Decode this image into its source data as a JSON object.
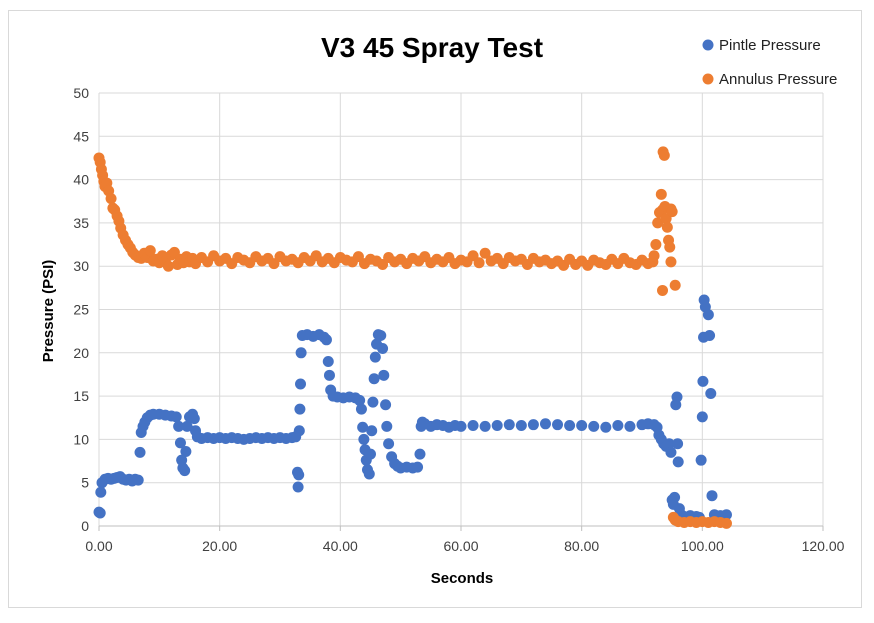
{
  "chart_data": {
    "type": "scatter",
    "title": "V3 45 Spray Test",
    "xlabel": "Seconds",
    "ylabel": "Pressure (PSI)",
    "xlim": [
      0,
      120
    ],
    "ylim": [
      0,
      50
    ],
    "x_ticks": [
      "0.00",
      "20.00",
      "40.00",
      "60.00",
      "80.00",
      "100.00",
      "120.00"
    ],
    "y_ticks": [
      "0",
      "5",
      "10",
      "15",
      "20",
      "25",
      "30",
      "35",
      "40",
      "45",
      "50"
    ],
    "grid": true,
    "legend_position": "top-right",
    "series": [
      {
        "name": "Pintle Pressure",
        "color": "#4472C4",
        "points": [
          [
            0.0,
            1.6
          ],
          [
            0.2,
            1.5
          ],
          [
            0.3,
            3.9
          ],
          [
            0.5,
            5.0
          ],
          [
            1.0,
            5.4
          ],
          [
            1.5,
            5.5
          ],
          [
            2.0,
            5.4
          ],
          [
            2.5,
            5.5
          ],
          [
            3.0,
            5.6
          ],
          [
            3.5,
            5.7
          ],
          [
            4.0,
            5.4
          ],
          [
            4.5,
            5.3
          ],
          [
            5.0,
            5.4
          ],
          [
            5.5,
            5.2
          ],
          [
            6.0,
            5.4
          ],
          [
            6.5,
            5.3
          ],
          [
            6.8,
            8.5
          ],
          [
            7.0,
            10.8
          ],
          [
            7.3,
            11.5
          ],
          [
            7.6,
            12.0
          ],
          [
            8.0,
            12.5
          ],
          [
            8.5,
            12.8
          ],
          [
            9.0,
            12.9
          ],
          [
            10.0,
            12.9
          ],
          [
            11.0,
            12.8
          ],
          [
            12.0,
            12.7
          ],
          [
            12.8,
            12.6
          ],
          [
            13.2,
            11.5
          ],
          [
            13.5,
            9.6
          ],
          [
            13.7,
            7.6
          ],
          [
            13.9,
            6.7
          ],
          [
            14.2,
            6.4
          ],
          [
            14.4,
            8.6
          ],
          [
            14.6,
            11.5
          ],
          [
            15.0,
            12.6
          ],
          [
            15.5,
            12.9
          ],
          [
            15.8,
            12.4
          ],
          [
            16.0,
            11.0
          ],
          [
            16.3,
            10.3
          ],
          [
            17.0,
            10.1
          ],
          [
            18.0,
            10.2
          ],
          [
            19.0,
            10.1
          ],
          [
            20.0,
            10.2
          ],
          [
            21.0,
            10.1
          ],
          [
            22.0,
            10.2
          ],
          [
            23.0,
            10.1
          ],
          [
            24.0,
            10.0
          ],
          [
            25.0,
            10.1
          ],
          [
            26.0,
            10.2
          ],
          [
            27.0,
            10.1
          ],
          [
            28.0,
            10.2
          ],
          [
            29.0,
            10.1
          ],
          [
            30.0,
            10.2
          ],
          [
            31.0,
            10.1
          ],
          [
            32.0,
            10.2
          ],
          [
            32.6,
            10.3
          ],
          [
            32.9,
            6.2
          ],
          [
            33.0,
            4.5
          ],
          [
            33.1,
            5.9
          ],
          [
            33.2,
            11.0
          ],
          [
            33.3,
            13.5
          ],
          [
            33.4,
            16.4
          ],
          [
            33.5,
            20.0
          ],
          [
            33.7,
            22.0
          ],
          [
            34.5,
            22.1
          ],
          [
            35.5,
            21.9
          ],
          [
            36.5,
            22.1
          ],
          [
            37.3,
            21.8
          ],
          [
            37.7,
            21.5
          ],
          [
            38.0,
            19.0
          ],
          [
            38.2,
            17.4
          ],
          [
            38.4,
            15.7
          ],
          [
            38.8,
            15.0
          ],
          [
            39.5,
            14.9
          ],
          [
            40.5,
            14.8
          ],
          [
            41.5,
            14.9
          ],
          [
            42.5,
            14.8
          ],
          [
            43.2,
            14.5
          ],
          [
            43.5,
            13.5
          ],
          [
            43.7,
            11.4
          ],
          [
            43.9,
            10.0
          ],
          [
            44.1,
            8.8
          ],
          [
            44.3,
            7.6
          ],
          [
            44.5,
            6.5
          ],
          [
            44.8,
            6.0
          ],
          [
            45.0,
            8.3
          ],
          [
            45.2,
            11.0
          ],
          [
            45.4,
            14.3
          ],
          [
            45.6,
            17.0
          ],
          [
            45.8,
            19.5
          ],
          [
            46.0,
            21.0
          ],
          [
            46.3,
            22.1
          ],
          [
            46.7,
            22.0
          ],
          [
            47.0,
            20.5
          ],
          [
            47.2,
            17.4
          ],
          [
            47.5,
            14.0
          ],
          [
            47.7,
            11.5
          ],
          [
            48.0,
            9.5
          ],
          [
            48.5,
            8.0
          ],
          [
            49.0,
            7.2
          ],
          [
            49.5,
            6.9
          ],
          [
            50.0,
            6.7
          ],
          [
            51.0,
            6.8
          ],
          [
            52.0,
            6.7
          ],
          [
            52.8,
            6.8
          ],
          [
            53.2,
            8.3
          ],
          [
            53.4,
            11.5
          ],
          [
            53.6,
            12.0
          ],
          [
            54.0,
            11.8
          ],
          [
            55.0,
            11.5
          ],
          [
            56.0,
            11.7
          ],
          [
            57.0,
            11.6
          ],
          [
            58.0,
            11.4
          ],
          [
            59.0,
            11.6
          ],
          [
            60.0,
            11.5
          ],
          [
            62.0,
            11.6
          ],
          [
            64.0,
            11.5
          ],
          [
            66.0,
            11.6
          ],
          [
            68.0,
            11.7
          ],
          [
            70.0,
            11.6
          ],
          [
            72.0,
            11.7
          ],
          [
            74.0,
            11.8
          ],
          [
            76.0,
            11.7
          ],
          [
            78.0,
            11.6
          ],
          [
            80.0,
            11.6
          ],
          [
            82.0,
            11.5
          ],
          [
            84.0,
            11.4
          ],
          [
            86.0,
            11.6
          ],
          [
            88.0,
            11.5
          ],
          [
            90.0,
            11.7
          ],
          [
            91.0,
            11.8
          ],
          [
            92.0,
            11.7
          ],
          [
            92.5,
            11.4
          ],
          [
            92.8,
            10.5
          ],
          [
            93.2,
            10.0
          ],
          [
            93.6,
            9.5
          ],
          [
            94.0,
            9.2
          ],
          [
            94.5,
            9.5
          ],
          [
            94.8,
            8.5
          ],
          [
            95.0,
            3.0
          ],
          [
            95.2,
            2.5
          ],
          [
            95.4,
            3.3
          ],
          [
            95.6,
            14.0
          ],
          [
            95.8,
            14.9
          ],
          [
            95.9,
            9.5
          ],
          [
            96.0,
            7.4
          ],
          [
            96.2,
            2.0
          ],
          [
            96.5,
            1.3
          ],
          [
            97.0,
            1.1
          ],
          [
            98.0,
            1.2
          ],
          [
            99.0,
            1.1
          ],
          [
            99.5,
            1.0
          ],
          [
            99.8,
            7.6
          ],
          [
            100.0,
            12.6
          ],
          [
            100.1,
            16.7
          ],
          [
            100.2,
            21.8
          ],
          [
            100.3,
            26.1
          ],
          [
            100.5,
            25.3
          ],
          [
            101.0,
            24.4
          ],
          [
            101.2,
            22.0
          ],
          [
            101.4,
            15.3
          ],
          [
            101.6,
            3.5
          ],
          [
            102.0,
            1.3
          ],
          [
            103.0,
            1.2
          ],
          [
            104.0,
            1.3
          ]
        ]
      },
      {
        "name": "Annulus Pressure",
        "color": "#ED7D31",
        "points": [
          [
            0.0,
            42.5
          ],
          [
            0.2,
            42.0
          ],
          [
            0.4,
            41.2
          ],
          [
            0.6,
            40.5
          ],
          [
            0.8,
            39.8
          ],
          [
            1.0,
            39.2
          ],
          [
            1.3,
            39.6
          ],
          [
            1.6,
            38.7
          ],
          [
            2.0,
            37.8
          ],
          [
            2.3,
            36.7
          ],
          [
            2.6,
            36.5
          ],
          [
            3.0,
            35.8
          ],
          [
            3.3,
            35.2
          ],
          [
            3.6,
            34.4
          ],
          [
            4.0,
            33.6
          ],
          [
            4.4,
            33.0
          ],
          [
            4.8,
            32.5
          ],
          [
            5.2,
            32.1
          ],
          [
            5.6,
            31.6
          ],
          [
            6.0,
            31.3
          ],
          [
            6.5,
            31.0
          ],
          [
            7.0,
            30.9
          ],
          [
            7.5,
            31.5
          ],
          [
            8.0,
            31.0
          ],
          [
            8.5,
            31.8
          ],
          [
            9.0,
            30.6
          ],
          [
            9.5,
            30.8
          ],
          [
            10.0,
            30.4
          ],
          [
            10.5,
            31.2
          ],
          [
            11.0,
            30.6
          ],
          [
            11.5,
            30.0
          ],
          [
            12.0,
            31.3
          ],
          [
            12.5,
            31.6
          ],
          [
            13.0,
            30.2
          ],
          [
            13.5,
            30.8
          ],
          [
            14.0,
            30.4
          ],
          [
            14.5,
            31.1
          ],
          [
            15.0,
            30.5
          ],
          [
            15.5,
            30.9
          ],
          [
            16.0,
            30.3
          ],
          [
            17.0,
            31.0
          ],
          [
            18.0,
            30.5
          ],
          [
            19.0,
            31.2
          ],
          [
            20.0,
            30.6
          ],
          [
            21.0,
            30.9
          ],
          [
            22.0,
            30.3
          ],
          [
            23.0,
            31.0
          ],
          [
            24.0,
            30.7
          ],
          [
            25.0,
            30.4
          ],
          [
            26.0,
            31.1
          ],
          [
            27.0,
            30.6
          ],
          [
            28.0,
            30.9
          ],
          [
            29.0,
            30.3
          ],
          [
            30.0,
            31.1
          ],
          [
            31.0,
            30.6
          ],
          [
            32.0,
            30.8
          ],
          [
            33.0,
            30.4
          ],
          [
            34.0,
            31.0
          ],
          [
            35.0,
            30.6
          ],
          [
            36.0,
            31.2
          ],
          [
            37.0,
            30.5
          ],
          [
            38.0,
            30.9
          ],
          [
            39.0,
            30.4
          ],
          [
            40.0,
            31.0
          ],
          [
            41.0,
            30.7
          ],
          [
            42.0,
            30.5
          ],
          [
            43.0,
            31.1
          ],
          [
            44.0,
            30.3
          ],
          [
            45.0,
            30.8
          ],
          [
            46.0,
            30.6
          ],
          [
            47.0,
            30.2
          ],
          [
            48.0,
            31.0
          ],
          [
            49.0,
            30.5
          ],
          [
            50.0,
            30.8
          ],
          [
            51.0,
            30.3
          ],
          [
            52.0,
            30.9
          ],
          [
            53.0,
            30.6
          ],
          [
            54.0,
            31.1
          ],
          [
            55.0,
            30.4
          ],
          [
            56.0,
            30.8
          ],
          [
            57.0,
            30.5
          ],
          [
            58.0,
            31.0
          ],
          [
            59.0,
            30.3
          ],
          [
            60.0,
            30.7
          ],
          [
            61.0,
            30.5
          ],
          [
            62.0,
            31.2
          ],
          [
            63.0,
            30.4
          ],
          [
            64.0,
            31.5
          ],
          [
            65.0,
            30.6
          ],
          [
            66.0,
            30.9
          ],
          [
            67.0,
            30.3
          ],
          [
            68.0,
            31.0
          ],
          [
            69.0,
            30.6
          ],
          [
            70.0,
            30.8
          ],
          [
            71.0,
            30.2
          ],
          [
            72.0,
            30.9
          ],
          [
            73.0,
            30.5
          ],
          [
            74.0,
            30.7
          ],
          [
            75.0,
            30.3
          ],
          [
            76.0,
            30.6
          ],
          [
            77.0,
            30.1
          ],
          [
            78.0,
            30.8
          ],
          [
            79.0,
            30.2
          ],
          [
            80.0,
            30.6
          ],
          [
            81.0,
            30.1
          ],
          [
            82.0,
            30.7
          ],
          [
            83.0,
            30.4
          ],
          [
            84.0,
            30.2
          ],
          [
            85.0,
            30.8
          ],
          [
            86.0,
            30.3
          ],
          [
            87.0,
            30.9
          ],
          [
            88.0,
            30.4
          ],
          [
            89.0,
            30.2
          ],
          [
            90.0,
            30.7
          ],
          [
            91.0,
            30.3
          ],
          [
            91.8,
            30.5
          ],
          [
            92.0,
            31.2
          ],
          [
            92.3,
            32.5
          ],
          [
            92.6,
            35.0
          ],
          [
            92.9,
            36.2
          ],
          [
            93.2,
            38.3
          ],
          [
            93.4,
            36.5
          ],
          [
            93.5,
            43.2
          ],
          [
            93.7,
            42.8
          ],
          [
            93.8,
            36.9
          ],
          [
            94.0,
            35.5
          ],
          [
            94.2,
            34.5
          ],
          [
            94.4,
            33.0
          ],
          [
            94.6,
            32.2
          ],
          [
            94.8,
            30.5
          ],
          [
            93.4,
            27.2
          ],
          [
            95.5,
            27.8
          ],
          [
            94.8,
            36.6
          ],
          [
            95.0,
            36.3
          ],
          [
            95.2,
            1.0
          ],
          [
            95.5,
            0.7
          ],
          [
            96.0,
            0.5
          ],
          [
            97.0,
            0.4
          ],
          [
            98.0,
            0.5
          ],
          [
            99.0,
            0.4
          ],
          [
            100.0,
            0.5
          ],
          [
            101.0,
            0.4
          ],
          [
            102.0,
            0.5
          ],
          [
            103.0,
            0.4
          ],
          [
            104.0,
            0.3
          ]
        ]
      }
    ]
  }
}
